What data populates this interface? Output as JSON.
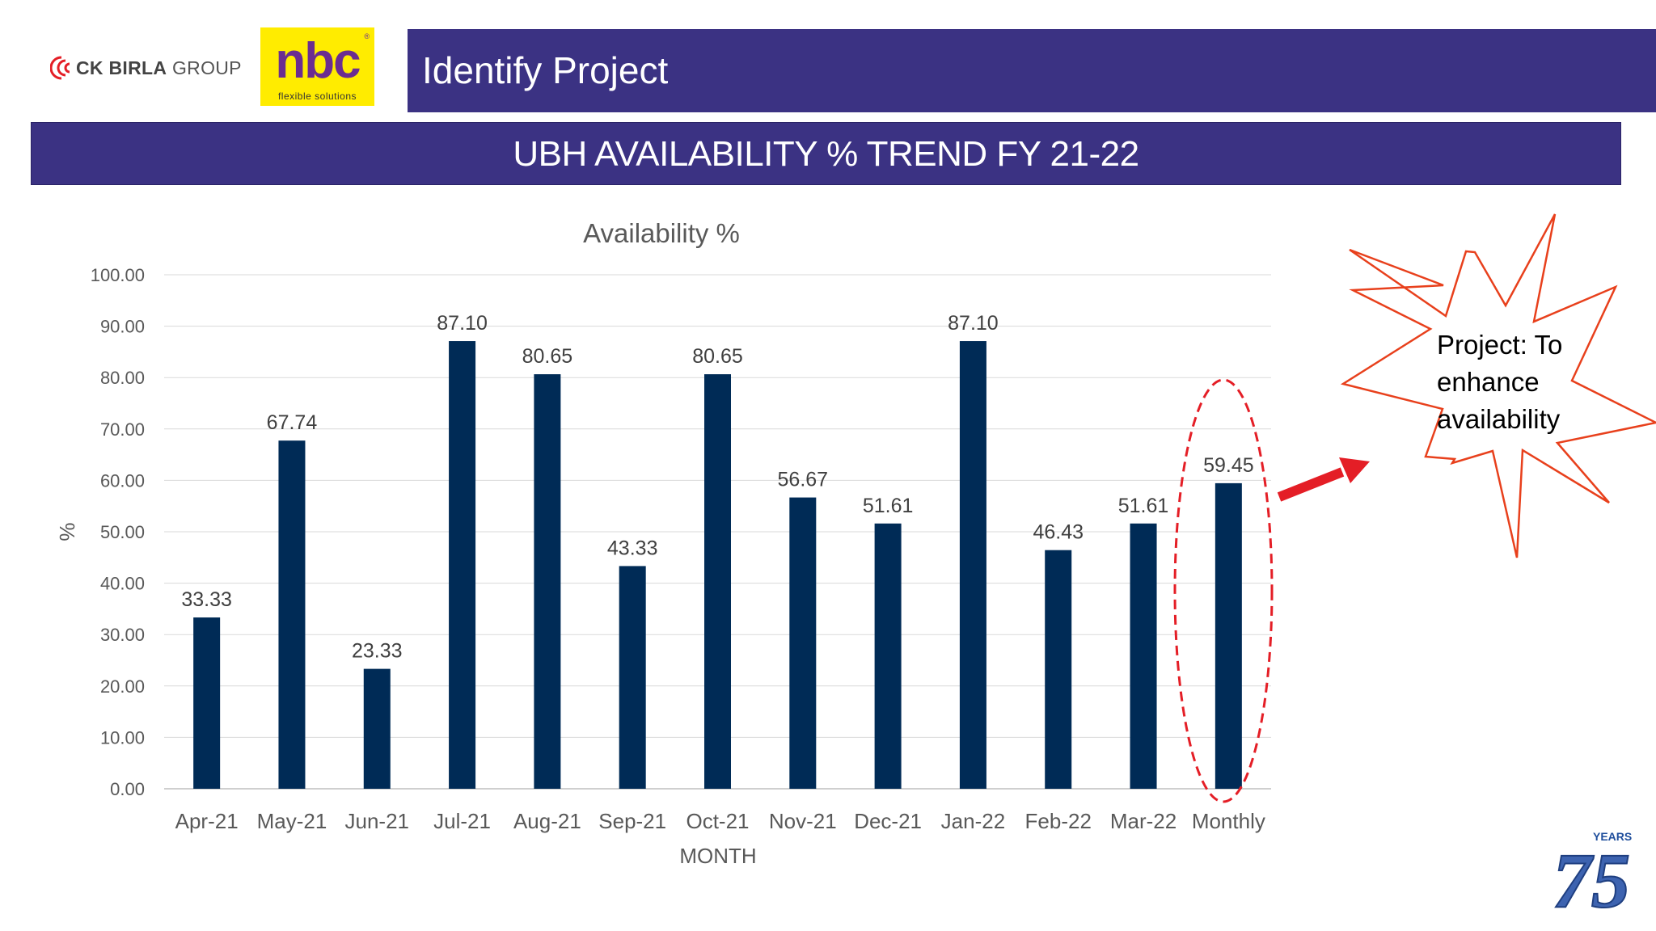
{
  "header": {
    "group_logo_text_bold": "CK BIRLA",
    "group_logo_text": "GROUP",
    "brand_logo_text": "nbc",
    "brand_logo_tagline": "flexible solutions",
    "banner_title": "Identify  Project",
    "slide_title": "UBH AVAILABILITY % TREND FY 21-22"
  },
  "callout": {
    "lines": [
      "Project: To",
      "enhance",
      "availability"
    ]
  },
  "badge": {
    "text": "YEARS",
    "number": "75"
  },
  "colors": {
    "banner": "#3b3283",
    "bar": "#002b56",
    "highlight": "#e41e26",
    "burst_outline": "#e8401c"
  },
  "chart_data": {
    "type": "bar",
    "title": "Availability %",
    "xlabel": "MONTH",
    "ylabel": "%",
    "categories": [
      "Apr-21",
      "May-21",
      "Jun-21",
      "Jul-21",
      "Aug-21",
      "Sep-21",
      "Oct-21",
      "Nov-21",
      "Dec-21",
      "Jan-22",
      "Feb-22",
      "Mar-22",
      "Monthly"
    ],
    "values": [
      33.33,
      67.74,
      23.33,
      87.1,
      80.65,
      43.33,
      80.65,
      56.67,
      51.61,
      87.1,
      46.43,
      51.61,
      59.45
    ],
    "value_labels": [
      "33.33",
      "67.74",
      "23.33",
      "87.10",
      "80.65",
      "43.33",
      "80.65",
      "56.67",
      "51.61",
      "87.10",
      "46.43",
      "51.61",
      "59.45"
    ],
    "ylim": [
      0,
      100
    ],
    "yticks": [
      "0.00",
      "10.00",
      "20.00",
      "30.00",
      "40.00",
      "50.00",
      "60.00",
      "70.00",
      "80.00",
      "90.00",
      "100.00"
    ],
    "grid": true,
    "highlighted_category": "Monthly"
  }
}
